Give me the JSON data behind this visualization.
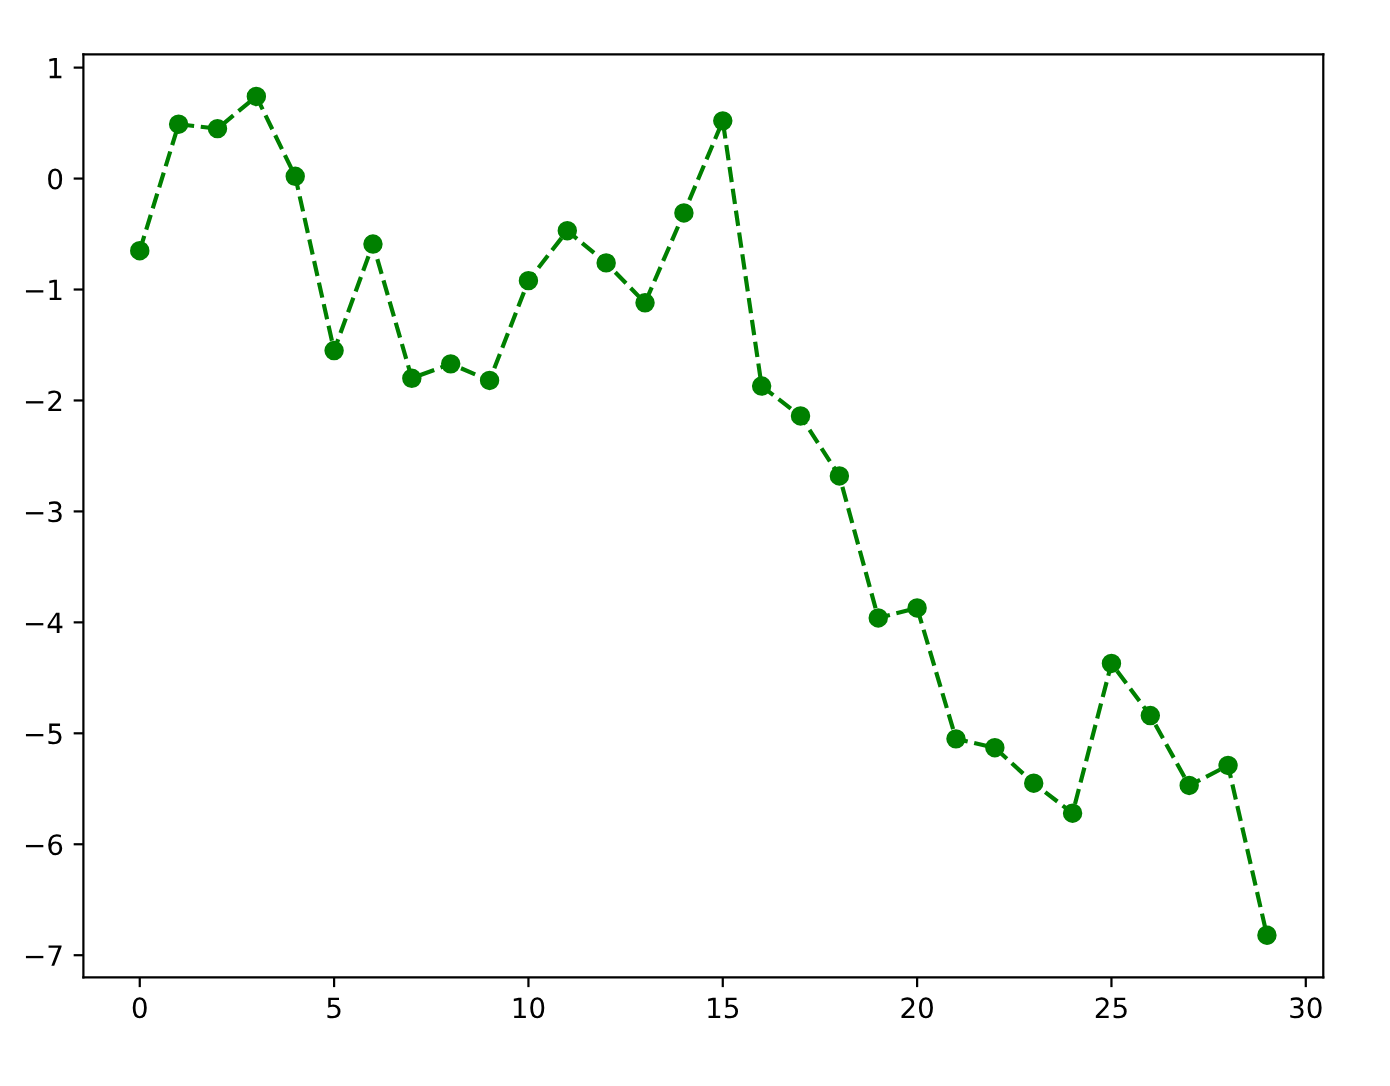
{
  "chart_data": {
    "type": "line",
    "x": [
      0,
      1,
      2,
      3,
      4,
      5,
      6,
      7,
      8,
      9,
      10,
      11,
      12,
      13,
      14,
      15,
      16,
      17,
      18,
      19,
      20,
      21,
      22,
      23,
      24,
      25,
      26,
      27,
      28,
      29
    ],
    "series": [
      {
        "color": "#008000",
        "values": [
          -0.65,
          0.49,
          0.45,
          0.74,
          0.02,
          -1.55,
          -0.59,
          -1.8,
          -1.67,
          -1.82,
          -0.92,
          -0.47,
          -0.76,
          -1.12,
          -0.31,
          0.52,
          -1.87,
          -2.14,
          -2.68,
          -3.96,
          -3.87,
          -5.05,
          -5.13,
          -5.45,
          -5.72,
          -4.37,
          -4.84,
          -5.47,
          -5.29,
          -6.82
        ]
      }
    ],
    "xlim": [
      -1.45,
      30.45
    ],
    "ylim": [
      -7.2,
      1.12
    ],
    "xticks": [
      0,
      5,
      10,
      15,
      20,
      25,
      30
    ],
    "yticks": [
      {
        "value": -7,
        "label": "−7"
      },
      {
        "value": -6,
        "label": "−6"
      },
      {
        "value": -5,
        "label": "−5"
      },
      {
        "value": -4,
        "label": "−4"
      },
      {
        "value": -3,
        "label": "−3"
      },
      {
        "value": -2,
        "label": "−2"
      },
      {
        "value": -1,
        "label": "−1"
      },
      0,
      1
    ],
    "marker": "circle",
    "line_style": "dashed",
    "grid": false,
    "legend": false
  }
}
